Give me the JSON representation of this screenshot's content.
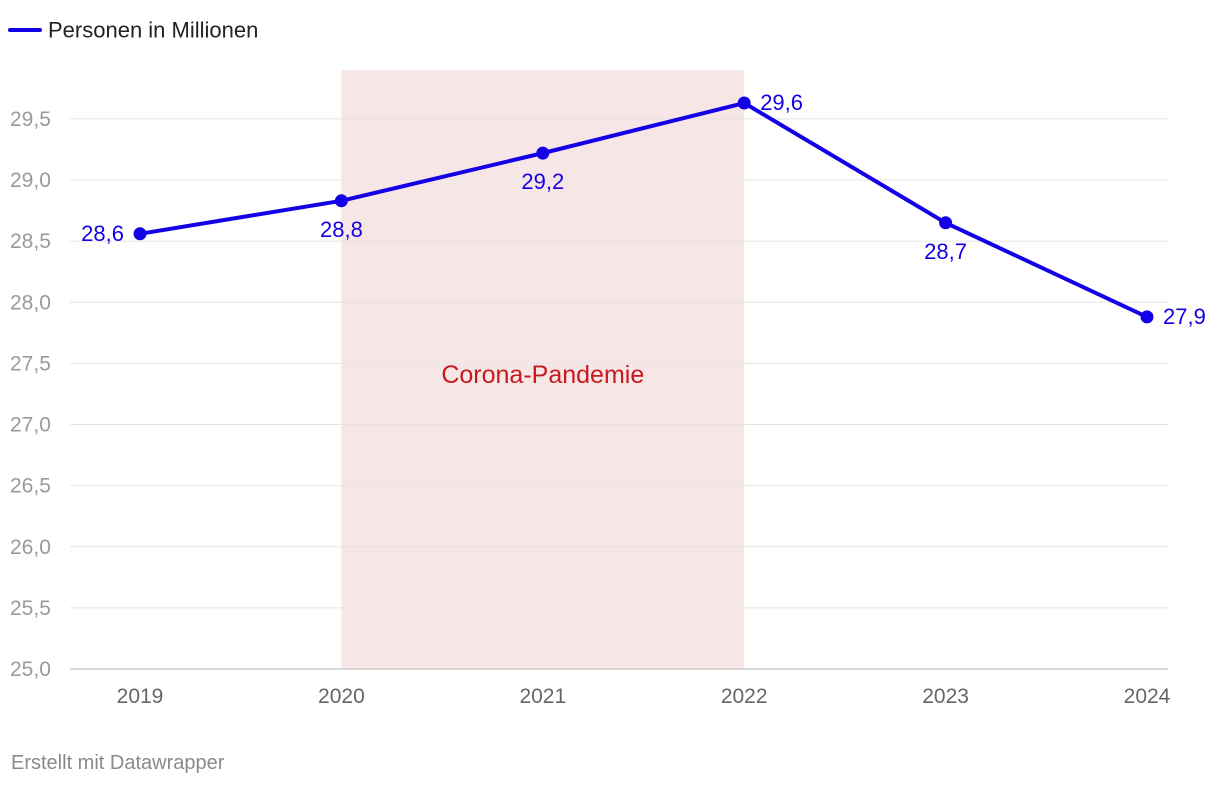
{
  "legend": {
    "label": "Personen in Millionen"
  },
  "credit": "Erstellt mit Datawrapper",
  "colors": {
    "line": "#1400e6",
    "band_fill": "#f7e6e6",
    "band_text": "#c8191c",
    "grid": "#e4e4e4",
    "axis": "#cccccc"
  },
  "chart_data": {
    "type": "line",
    "x": [
      "2019",
      "2020",
      "2021",
      "2022",
      "2023",
      "2024"
    ],
    "series": [
      {
        "name": "Personen in Millionen",
        "values": [
          28.56,
          28.83,
          29.22,
          29.63,
          28.65,
          27.88
        ],
        "labels": [
          "28,6",
          "28,8",
          "29,2",
          "29,6",
          "28,7",
          "27,9"
        ],
        "label_positions": [
          "left",
          "below",
          "below",
          "right",
          "below",
          "right"
        ]
      }
    ],
    "ylim": [
      25.0,
      29.9
    ],
    "yticks": [
      25.0,
      25.5,
      26.0,
      26.5,
      27.0,
      27.5,
      28.0,
      28.5,
      29.0,
      29.5
    ],
    "ytick_labels": [
      "25,0",
      "25,5",
      "26,0",
      "26,5",
      "27,0",
      "27,5",
      "28,0",
      "28,5",
      "29,0",
      "29,5"
    ],
    "band": {
      "from": "2020",
      "to": "2022",
      "label": "Corona-Pandemie"
    },
    "grid": true,
    "legend_position": "top-left",
    "title": "",
    "xlabel": "",
    "ylabel": ""
  }
}
